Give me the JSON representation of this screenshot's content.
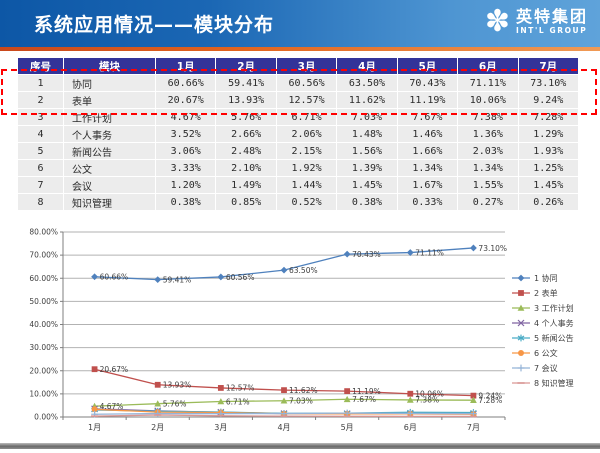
{
  "header": {
    "title": "系统应用情况——模块分布",
    "logo": {
      "icon": "pinwheel-icon",
      "name": "英特集团",
      "sub": "INT'L GROUP"
    }
  },
  "accent_colors": {
    "header_blue": "#1b67b4",
    "divider_orange": "#e2641e",
    "table_header": "#333399",
    "highlight_red": "#ff0000"
  },
  "table": {
    "columns": [
      "序号",
      "模块",
      "1月",
      "2月",
      "3月",
      "4月",
      "5月",
      "6月",
      "7月"
    ],
    "rows": [
      {
        "no": "1",
        "module": "协同",
        "values": [
          "60.66%",
          "59.41%",
          "60.56%",
          "63.50%",
          "70.43%",
          "71.11%",
          "73.10%"
        ]
      },
      {
        "no": "2",
        "module": "表单",
        "values": [
          "20.67%",
          "13.93%",
          "12.57%",
          "11.62%",
          "11.19%",
          "10.06%",
          "9.24%"
        ]
      },
      {
        "no": "3",
        "module": "工作计划",
        "values": [
          "4.67%",
          "5.76%",
          "6.71%",
          "7.03%",
          "7.67%",
          "7.38%",
          "7.28%"
        ]
      },
      {
        "no": "4",
        "module": "个人事务",
        "values": [
          "3.52%",
          "2.66%",
          "2.06%",
          "1.48%",
          "1.46%",
          "1.36%",
          "1.29%"
        ]
      },
      {
        "no": "5",
        "module": "新闻公告",
        "values": [
          "3.06%",
          "2.48%",
          "2.15%",
          "1.56%",
          "1.66%",
          "2.03%",
          "1.93%"
        ]
      },
      {
        "no": "6",
        "module": "公文",
        "values": [
          "3.33%",
          "2.10%",
          "1.92%",
          "1.39%",
          "1.34%",
          "1.34%",
          "1.25%"
        ]
      },
      {
        "no": "7",
        "module": "会议",
        "values": [
          "1.20%",
          "1.49%",
          "1.44%",
          "1.45%",
          "1.67%",
          "1.55%",
          "1.45%"
        ]
      },
      {
        "no": "8",
        "module": "知识管理",
        "values": [
          "0.38%",
          "0.85%",
          "0.52%",
          "0.38%",
          "0.33%",
          "0.27%",
          "0.26%"
        ]
      }
    ]
  },
  "chart_data": {
    "type": "line",
    "x": [
      "1月",
      "2月",
      "3月",
      "4月",
      "5月",
      "6月",
      "7月"
    ],
    "ylim": [
      0,
      80
    ],
    "ytick_step": 10,
    "ytick_labels": [
      "0.00%",
      "10.00%",
      "20.00%",
      "30.00%",
      "40.00%",
      "50.00%",
      "60.00%",
      "70.00%",
      "80.00%"
    ],
    "grid": true,
    "legend_position": "right",
    "title": "",
    "xlabel": "",
    "ylabel": "",
    "series": [
      {
        "name": "1 协同",
        "color": "#4F81BD",
        "marker": "diamond",
        "show_labels": true,
        "values": [
          60.66,
          59.41,
          60.56,
          63.5,
          70.43,
          71.11,
          73.1
        ]
      },
      {
        "name": "2 表单",
        "color": "#C0504D",
        "marker": "square",
        "show_labels": true,
        "values": [
          20.67,
          13.93,
          12.57,
          11.62,
          11.19,
          10.06,
          9.24
        ]
      },
      {
        "name": "3 工作计划",
        "color": "#9BBB59",
        "marker": "triangle",
        "show_labels": true,
        "values": [
          4.67,
          5.76,
          6.71,
          7.03,
          7.67,
          7.38,
          7.28
        ]
      },
      {
        "name": "4 个人事务",
        "color": "#8064A2",
        "marker": "x",
        "show_labels": false,
        "values": [
          3.52,
          2.66,
          2.06,
          1.48,
          1.46,
          1.36,
          1.29
        ]
      },
      {
        "name": "5 新闻公告",
        "color": "#4BACC6",
        "marker": "asterisk",
        "show_labels": false,
        "values": [
          3.06,
          2.48,
          2.15,
          1.56,
          1.66,
          2.03,
          1.93
        ]
      },
      {
        "name": "6 公文",
        "color": "#F79646",
        "marker": "circle",
        "show_labels": false,
        "values": [
          3.33,
          2.1,
          1.92,
          1.39,
          1.34,
          1.34,
          1.25
        ]
      },
      {
        "name": "7 会议",
        "color": "#95B3D7",
        "marker": "plus",
        "show_labels": false,
        "values": [
          1.2,
          1.49,
          1.44,
          1.45,
          1.67,
          1.55,
          1.45
        ]
      },
      {
        "name": "8 知识管理",
        "color": "#D99694",
        "marker": "dash",
        "show_labels": false,
        "values": [
          0.38,
          0.85,
          0.52,
          0.38,
          0.33,
          0.27,
          0.26
        ]
      }
    ]
  }
}
